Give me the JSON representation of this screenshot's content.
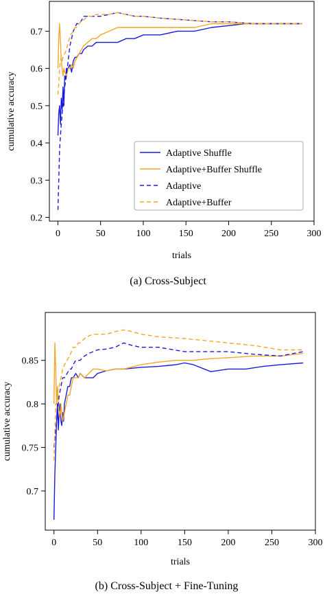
{
  "chart_data": [
    {
      "type": "line",
      "caption": "(a)  Cross-Subject",
      "xlabel": "trials",
      "ylabel": "cumulative accuracy",
      "xlim": [
        -10,
        300
      ],
      "ylim": [
        0.19,
        0.78
      ],
      "x_ticks": [
        0,
        50,
        100,
        150,
        200,
        250,
        300
      ],
      "x_tick_labels": [
        "0",
        "50",
        "100",
        "150",
        "200",
        "250",
        "300"
      ],
      "y_ticks": [
        0.2,
        0.3,
        0.4,
        0.5,
        0.6,
        0.7
      ],
      "y_tick_labels": [
        "0.2",
        "0.3",
        "0.4",
        "0.5",
        "0.6",
        "0.7"
      ],
      "grid": false,
      "legend_position": "lower-right",
      "series": [
        {
          "name": "Adaptive Shuffle",
          "color": "#1a1adb",
          "dash": "solid",
          "x": [
            0,
            1,
            2,
            3,
            4,
            5,
            6,
            7,
            8,
            9,
            10,
            12,
            14,
            16,
            18,
            20,
            22,
            25,
            28,
            30,
            35,
            40,
            45,
            50,
            60,
            70,
            80,
            90,
            100,
            120,
            140,
            160,
            180,
            200,
            220,
            240,
            260,
            286
          ],
          "y": [
            0.42,
            0.48,
            0.5,
            0.45,
            0.52,
            0.49,
            0.55,
            0.5,
            0.58,
            0.57,
            0.6,
            0.6,
            0.61,
            0.59,
            0.62,
            0.63,
            0.63,
            0.64,
            0.64,
            0.65,
            0.66,
            0.66,
            0.67,
            0.67,
            0.67,
            0.67,
            0.68,
            0.68,
            0.69,
            0.69,
            0.7,
            0.7,
            0.71,
            0.715,
            0.72,
            0.72,
            0.72,
            0.72
          ]
        },
        {
          "name": "Adaptive+Buffer Shuffle",
          "color": "#f5a623",
          "dash": "solid",
          "x": [
            0,
            1,
            2,
            3,
            4,
            5,
            6,
            7,
            8,
            10,
            12,
            14,
            16,
            18,
            20,
            25,
            30,
            35,
            40,
            45,
            50,
            60,
            70,
            80,
            100,
            120,
            140,
            160,
            180,
            200,
            220,
            250,
            286
          ],
          "y": [
            0.6,
            0.68,
            0.72,
            0.67,
            0.62,
            0.6,
            0.58,
            0.6,
            0.59,
            0.58,
            0.6,
            0.6,
            0.61,
            0.6,
            0.62,
            0.64,
            0.66,
            0.67,
            0.68,
            0.68,
            0.69,
            0.7,
            0.71,
            0.71,
            0.71,
            0.71,
            0.71,
            0.71,
            0.72,
            0.72,
            0.72,
            0.72,
            0.72
          ]
        },
        {
          "name": "Adaptive",
          "color": "#1a1adb",
          "dash": "dashed",
          "x": [
            0,
            1,
            2,
            3,
            4,
            5,
            6,
            7,
            8,
            10,
            12,
            14,
            16,
            18,
            20,
            22,
            25,
            28,
            30,
            35,
            40,
            45,
            50,
            60,
            70,
            80,
            90,
            100,
            120,
            150,
            180,
            200,
            230,
            260,
            286
          ],
          "y": [
            0.22,
            0.3,
            0.38,
            0.42,
            0.45,
            0.48,
            0.5,
            0.52,
            0.55,
            0.58,
            0.62,
            0.66,
            0.68,
            0.7,
            0.71,
            0.72,
            0.72,
            0.73,
            0.74,
            0.74,
            0.74,
            0.74,
            0.74,
            0.745,
            0.75,
            0.745,
            0.74,
            0.74,
            0.735,
            0.73,
            0.725,
            0.725,
            0.72,
            0.72,
            0.72
          ]
        },
        {
          "name": "Adaptive+Buffer",
          "color": "#f5a623",
          "dash": "dashed",
          "x": [
            0,
            1,
            2,
            3,
            4,
            5,
            6,
            8,
            10,
            12,
            15,
            18,
            20,
            22,
            25,
            28,
            30,
            35,
            40,
            45,
            50,
            60,
            70,
            80,
            90,
            100,
            120,
            150,
            180,
            200,
            230,
            260,
            286
          ],
          "y": [
            0.53,
            0.56,
            0.6,
            0.62,
            0.63,
            0.62,
            0.63,
            0.64,
            0.65,
            0.67,
            0.69,
            0.7,
            0.71,
            0.71,
            0.72,
            0.73,
            0.73,
            0.74,
            0.74,
            0.745,
            0.745,
            0.745,
            0.75,
            0.745,
            0.74,
            0.74,
            0.735,
            0.73,
            0.725,
            0.725,
            0.72,
            0.72,
            0.72
          ]
        }
      ]
    },
    {
      "type": "line",
      "caption": "(b)  Cross-Subject + Fine-Tuning",
      "xlabel": "trials",
      "ylabel": "cumulative accuracy",
      "xlim": [
        -10,
        300
      ],
      "ylim": [
        0.655,
        0.905
      ],
      "x_ticks": [
        0,
        50,
        100,
        150,
        200,
        250,
        300
      ],
      "x_tick_labels": [
        "0",
        "50",
        "100",
        "150",
        "200",
        "250",
        "300"
      ],
      "y_ticks": [
        0.7,
        0.75,
        0.8,
        0.85
      ],
      "y_tick_labels": [
        "0.7",
        "0.75",
        "0.8",
        "0.85"
      ],
      "grid": false,
      "legend_position": "none",
      "series": [
        {
          "name": "Adaptive Shuffle",
          "color": "#1a1adb",
          "dash": "solid",
          "x": [
            0,
            1,
            2,
            3,
            4,
            5,
            6,
            7,
            8,
            9,
            10,
            11,
            12,
            14,
            16,
            18,
            20,
            22,
            25,
            28,
            30,
            35,
            40,
            45,
            50,
            60,
            70,
            80,
            100,
            120,
            140,
            150,
            160,
            180,
            200,
            220,
            240,
            260,
            286
          ],
          "y": [
            0.667,
            0.72,
            0.75,
            0.78,
            0.8,
            0.77,
            0.79,
            0.8,
            0.78,
            0.775,
            0.79,
            0.78,
            0.8,
            0.81,
            0.82,
            0.82,
            0.83,
            0.83,
            0.835,
            0.83,
            0.835,
            0.83,
            0.83,
            0.83,
            0.835,
            0.838,
            0.84,
            0.84,
            0.842,
            0.843,
            0.845,
            0.847,
            0.845,
            0.837,
            0.84,
            0.84,
            0.843,
            0.845,
            0.847
          ]
        },
        {
          "name": "Adaptive+Buffer Shuffle",
          "color": "#f5a623",
          "dash": "solid",
          "x": [
            0,
            1,
            2,
            3,
            4,
            5,
            6,
            7,
            8,
            10,
            12,
            14,
            16,
            18,
            20,
            22,
            25,
            28,
            30,
            35,
            40,
            45,
            50,
            60,
            70,
            80,
            100,
            120,
            140,
            160,
            180,
            200,
            230,
            260,
            286
          ],
          "y": [
            0.8,
            0.87,
            0.84,
            0.8,
            0.82,
            0.8,
            0.79,
            0.785,
            0.8,
            0.78,
            0.79,
            0.8,
            0.81,
            0.81,
            0.82,
            0.83,
            0.83,
            0.83,
            0.835,
            0.83,
            0.835,
            0.84,
            0.84,
            0.838,
            0.84,
            0.84,
            0.845,
            0.848,
            0.85,
            0.85,
            0.852,
            0.853,
            0.855,
            0.855,
            0.858
          ]
        },
        {
          "name": "Adaptive",
          "color": "#1a1adb",
          "dash": "dashed",
          "x": [
            0,
            1,
            2,
            3,
            4,
            5,
            6,
            8,
            10,
            12,
            15,
            18,
            20,
            22,
            25,
            28,
            30,
            35,
            40,
            45,
            50,
            60,
            70,
            80,
            90,
            100,
            120,
            150,
            180,
            200,
            230,
            260,
            286
          ],
          "y": [
            0.75,
            0.76,
            0.77,
            0.78,
            0.79,
            0.8,
            0.81,
            0.82,
            0.83,
            0.83,
            0.835,
            0.84,
            0.84,
            0.845,
            0.85,
            0.85,
            0.85,
            0.855,
            0.858,
            0.86,
            0.862,
            0.863,
            0.865,
            0.87,
            0.867,
            0.865,
            0.865,
            0.86,
            0.86,
            0.86,
            0.857,
            0.855,
            0.86
          ]
        },
        {
          "name": "Adaptive+Buffer",
          "color": "#f5a623",
          "dash": "dashed",
          "x": [
            0,
            1,
            2,
            3,
            4,
            5,
            6,
            8,
            10,
            12,
            15,
            18,
            20,
            22,
            25,
            28,
            30,
            35,
            40,
            45,
            50,
            60,
            70,
            80,
            90,
            100,
            120,
            150,
            180,
            200,
            230,
            260,
            286
          ],
          "y": [
            0.735,
            0.77,
            0.8,
            0.8,
            0.81,
            0.82,
            0.82,
            0.83,
            0.84,
            0.845,
            0.85,
            0.855,
            0.86,
            0.865,
            0.865,
            0.87,
            0.87,
            0.875,
            0.878,
            0.88,
            0.88,
            0.88,
            0.883,
            0.885,
            0.883,
            0.88,
            0.877,
            0.875,
            0.872,
            0.87,
            0.867,
            0.862,
            0.862
          ]
        }
      ]
    }
  ]
}
